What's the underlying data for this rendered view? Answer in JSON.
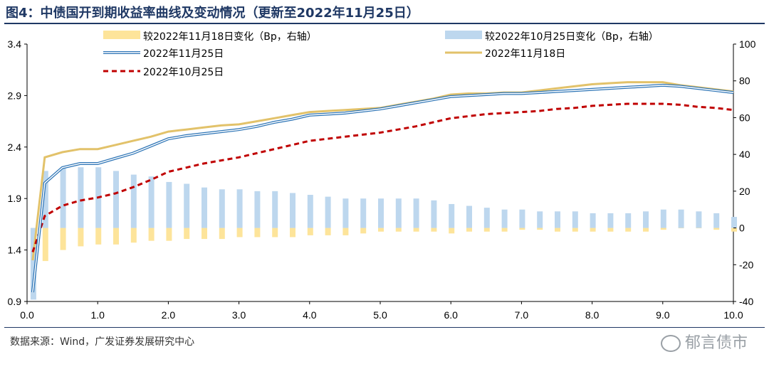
{
  "header": {
    "title": "图4：中债国开到期收益率曲线及变动情况（更新至2022年11月25日）"
  },
  "footer": {
    "source": "数据来源：Wind，广发证券发展研究中心",
    "watermark": "郁言债市"
  },
  "colors": {
    "bar_1118": "#fde49a",
    "bar_1025": "#bdd7ee",
    "line_1125": "#2e75b6",
    "line_1118": "#e2c26a",
    "line_1025": "#c00000"
  },
  "chart_data": {
    "type": "line",
    "title": "",
    "x": [
      0.08,
      0.25,
      0.5,
      0.75,
      1,
      1.25,
      1.5,
      1.75,
      2,
      2.25,
      2.5,
      2.75,
      3,
      3.25,
      3.5,
      3.75,
      4,
      4.25,
      4.5,
      4.75,
      5,
      5.25,
      5.5,
      5.75,
      6,
      6.25,
      6.5,
      6.75,
      7,
      7.25,
      7.5,
      7.75,
      8,
      8.25,
      8.5,
      8.75,
      9,
      9.25,
      9.5,
      9.75,
      10
    ],
    "xlim": [
      0,
      10
    ],
    "xticks": [
      "0.0",
      "1.0",
      "2.0",
      "3.0",
      "4.0",
      "5.0",
      "6.0",
      "7.0",
      "8.0",
      "9.0",
      "10.0"
    ],
    "y_left": {
      "lim": [
        0.9,
        3.4
      ],
      "ticks": [
        "0.9",
        "1.4",
        "1.9",
        "2.4",
        "2.9",
        "3.4"
      ]
    },
    "y_right": {
      "lim": [
        -40,
        100
      ],
      "ticks": [
        "-40",
        "-20",
        "0",
        "20",
        "40",
        "60",
        "80",
        "100"
      ]
    },
    "legend": [
      {
        "name": "较2022年11月18日变化（Bp，右轴）",
        "kind": "bar",
        "color_key": "bar_1118"
      },
      {
        "name": "较2022年10月25日变化（Bp，右轴）",
        "kind": "bar",
        "color_key": "bar_1025"
      },
      {
        "name": "2022年11月25日",
        "kind": "double-line",
        "color_key": "line_1125"
      },
      {
        "name": "2022年11月18日",
        "kind": "line",
        "color_key": "line_1118"
      },
      {
        "name": "2022年10月25日",
        "kind": "dash",
        "color_key": "line_1025"
      }
    ],
    "series_lines": [
      {
        "name": "2022年11月25日",
        "axis": "left",
        "values": [
          0.99,
          2.05,
          2.2,
          2.24,
          2.24,
          2.29,
          2.34,
          2.41,
          2.48,
          2.51,
          2.53,
          2.55,
          2.57,
          2.6,
          2.64,
          2.67,
          2.71,
          2.72,
          2.73,
          2.75,
          2.77,
          2.8,
          2.83,
          2.86,
          2.89,
          2.9,
          2.91,
          2.92,
          2.92,
          2.93,
          2.94,
          2.95,
          2.96,
          2.97,
          2.98,
          2.99,
          3.0,
          2.99,
          2.97,
          2.95,
          2.93
        ]
      },
      {
        "name": "2022年11月18日",
        "axis": "left",
        "values": [
          1.3,
          2.3,
          2.35,
          2.38,
          2.38,
          2.42,
          2.46,
          2.5,
          2.55,
          2.57,
          2.59,
          2.61,
          2.62,
          2.65,
          2.68,
          2.71,
          2.74,
          2.75,
          2.76,
          2.77,
          2.78,
          2.81,
          2.84,
          2.87,
          2.91,
          2.92,
          2.92,
          2.93,
          2.93,
          2.95,
          2.97,
          2.99,
          3.01,
          3.02,
          3.03,
          3.03,
          3.03,
          3.0,
          2.98,
          2.96,
          2.94
        ]
      },
      {
        "name": "2022年10月25日",
        "axis": "left",
        "values": [
          1.38,
          1.73,
          1.83,
          1.88,
          1.91,
          1.95,
          2.01,
          2.08,
          2.16,
          2.2,
          2.24,
          2.27,
          2.3,
          2.34,
          2.38,
          2.42,
          2.46,
          2.48,
          2.5,
          2.52,
          2.54,
          2.57,
          2.6,
          2.64,
          2.68,
          2.7,
          2.72,
          2.73,
          2.74,
          2.75,
          2.77,
          2.78,
          2.8,
          2.81,
          2.82,
          2.82,
          2.82,
          2.81,
          2.79,
          2.78,
          2.76
        ]
      }
    ],
    "series_bars": [
      {
        "name": "较2022年11月18日变化（Bp，右轴）",
        "axis": "right",
        "values": [
          -18,
          -18,
          -12,
          -10,
          -9,
          -9,
          -8,
          -7,
          -7,
          -6,
          -6,
          -6,
          -5,
          -5,
          -5,
          -5,
          -4,
          -4,
          -4,
          -3,
          -2,
          -2,
          -2,
          -2,
          -3,
          -2,
          -2,
          -2,
          -1,
          -1,
          -2,
          -2,
          -2,
          -2,
          -2,
          -2,
          -1,
          0,
          0,
          -1,
          -2
        ]
      },
      {
        "name": "较2022年10月25日变化（Bp，右轴）",
        "axis": "right",
        "values": [
          -39,
          31,
          33,
          33,
          33,
          31,
          29,
          28,
          25,
          24,
          22,
          21,
          21,
          20,
          20,
          19,
          18,
          17,
          16,
          16,
          16,
          16,
          16,
          15,
          13,
          12,
          11,
          10,
          10,
          9,
          9,
          9,
          8,
          8,
          8,
          9,
          10,
          10,
          9,
          8,
          6
        ]
      }
    ]
  }
}
